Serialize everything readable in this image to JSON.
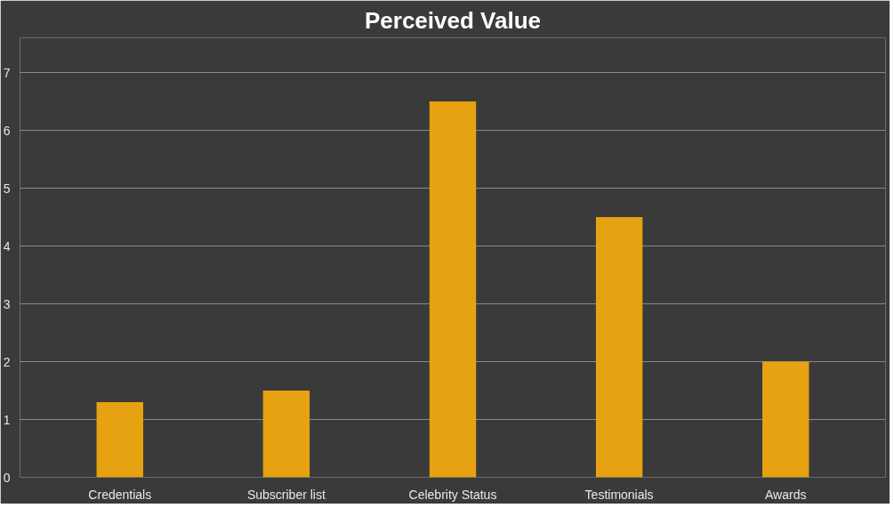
{
  "chart_data": {
    "type": "bar",
    "title": "Perceived Value",
    "categories": [
      "Credentials",
      "Subscriber list",
      "Celebrity Status",
      "Testimonials",
      "Awards"
    ],
    "values": [
      1.3,
      1.5,
      6.5,
      4.5,
      2
    ],
    "color": "#e6a211",
    "ylim": [
      0,
      7.6
    ],
    "yticks": [
      0,
      1,
      2,
      3,
      4,
      5,
      6,
      7
    ],
    "grid": "y"
  }
}
